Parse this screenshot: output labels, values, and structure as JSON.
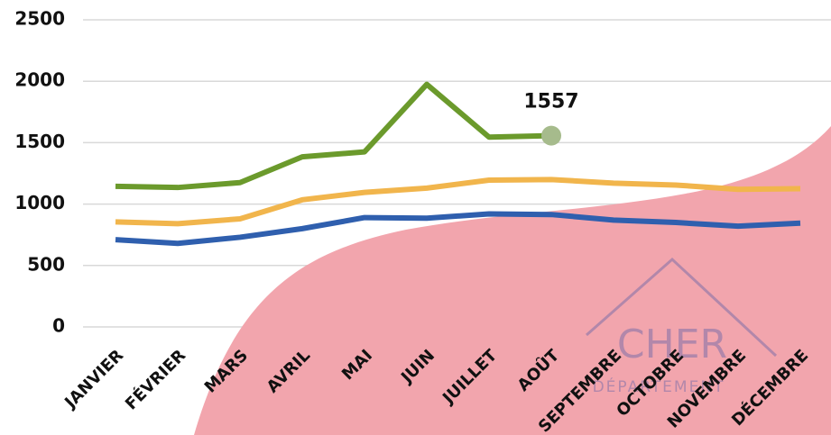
{
  "chart_data": {
    "type": "line",
    "categories": [
      "JANVIER",
      "FÉVRIER",
      "MARS",
      "AVRIL",
      "MAI",
      "JUIN",
      "JUILLET",
      "AOÛT",
      "SEPTEMBRE",
      "OCTOBRE",
      "NOVEMBRE",
      "DÉCEMBRE"
    ],
    "series": [
      {
        "color": "#6b9a2c",
        "annotate_last": true,
        "values": [
          1145,
          1135,
          1175,
          1385,
          1425,
          1975,
          1545,
          1557,
          null,
          null,
          null,
          null
        ]
      },
      {
        "color": "#f1b54c",
        "values": [
          855,
          840,
          880,
          1035,
          1095,
          1130,
          1195,
          1200,
          1170,
          1155,
          1120,
          1125
        ]
      },
      {
        "color": "#2f5fae",
        "values": [
          710,
          680,
          730,
          800,
          890,
          885,
          920,
          915,
          870,
          850,
          820,
          845
        ]
      }
    ],
    "ylim": [
      0,
      2500
    ],
    "yticks": [
      0,
      500,
      1000,
      1500,
      2000,
      2500
    ],
    "grid": true,
    "logo": {
      "name": "CHER",
      "subtitle": "DÉPARTEMENT"
    }
  }
}
